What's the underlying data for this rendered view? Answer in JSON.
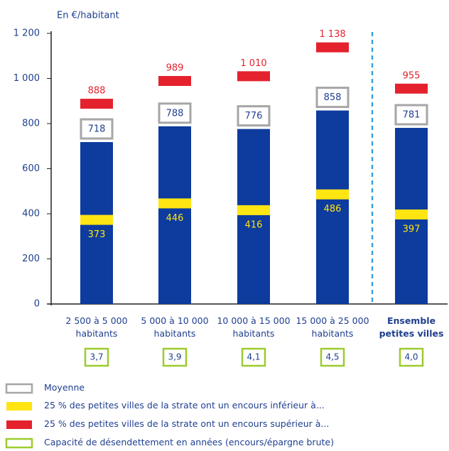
{
  "chart_data": {
    "type": "bar",
    "y_axis_label": "En €/habitant",
    "categories": [
      "2 500 à 5 000\nhabitants",
      "5 000 à 10 000\nhabitants",
      "10 000 à 15 000\nhabitants",
      "15 000 à 25 000\nhabitants",
      "Ensemble\npetites villes"
    ],
    "ylim": [
      0,
      1200
    ],
    "yticks": [
      0,
      200,
      400,
      600,
      800,
      {
        "value": 1000,
        "label": "1 000"
      },
      {
        "value": 1200,
        "label": "1 200"
      }
    ],
    "series": [
      {
        "name": "Moyenne",
        "color": "#a6a6a6",
        "bar_color": "#0d3b9e",
        "values": [
          718,
          788,
          776,
          858,
          781
        ]
      },
      {
        "name": "25 % des petites villes de la strate ont un encours inférieur à...",
        "color": "#ffe512",
        "values": [
          373,
          446,
          416,
          486,
          397
        ]
      },
      {
        "name": "25 % des petites villes de la strate ont un encours supérieur à...",
        "color": "#e4222e",
        "values": [
          888,
          989,
          1010,
          1138,
          955
        ],
        "value_labels": [
          "888",
          "989",
          "1 010",
          "1 138",
          "955"
        ]
      },
      {
        "name": "Capacité de désendettement en années (encours/épargne brute)",
        "color": "#9ccc2e",
        "values": [
          3.7,
          3.9,
          4.1,
          4.5,
          4.0
        ],
        "value_labels": [
          "3,7",
          "3,9",
          "4,1",
          "4,5",
          "4,0"
        ]
      }
    ]
  }
}
